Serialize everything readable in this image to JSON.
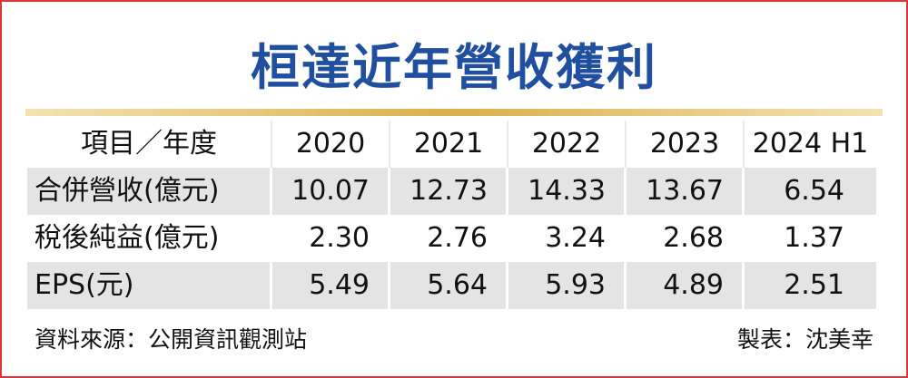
{
  "title": "桓達近年營收獲利",
  "table": {
    "header": [
      "項目／年度",
      "2020",
      "2021",
      "2022",
      "2023",
      "2024 H1"
    ],
    "rows": [
      [
        "合併營收(億元)",
        "10.07",
        "12.73",
        "14.33",
        "13.67",
        "6.54"
      ],
      [
        "稅後純益(億元)",
        "2.30",
        "2.76",
        "3.24",
        "2.68",
        "1.37"
      ],
      [
        "EPS(元)",
        "5.49",
        "5.64",
        "5.93",
        "4.89",
        "2.51"
      ]
    ]
  },
  "footer": {
    "source": "資料來源：公開資訊觀測站",
    "author": "製表：沈美幸"
  }
}
